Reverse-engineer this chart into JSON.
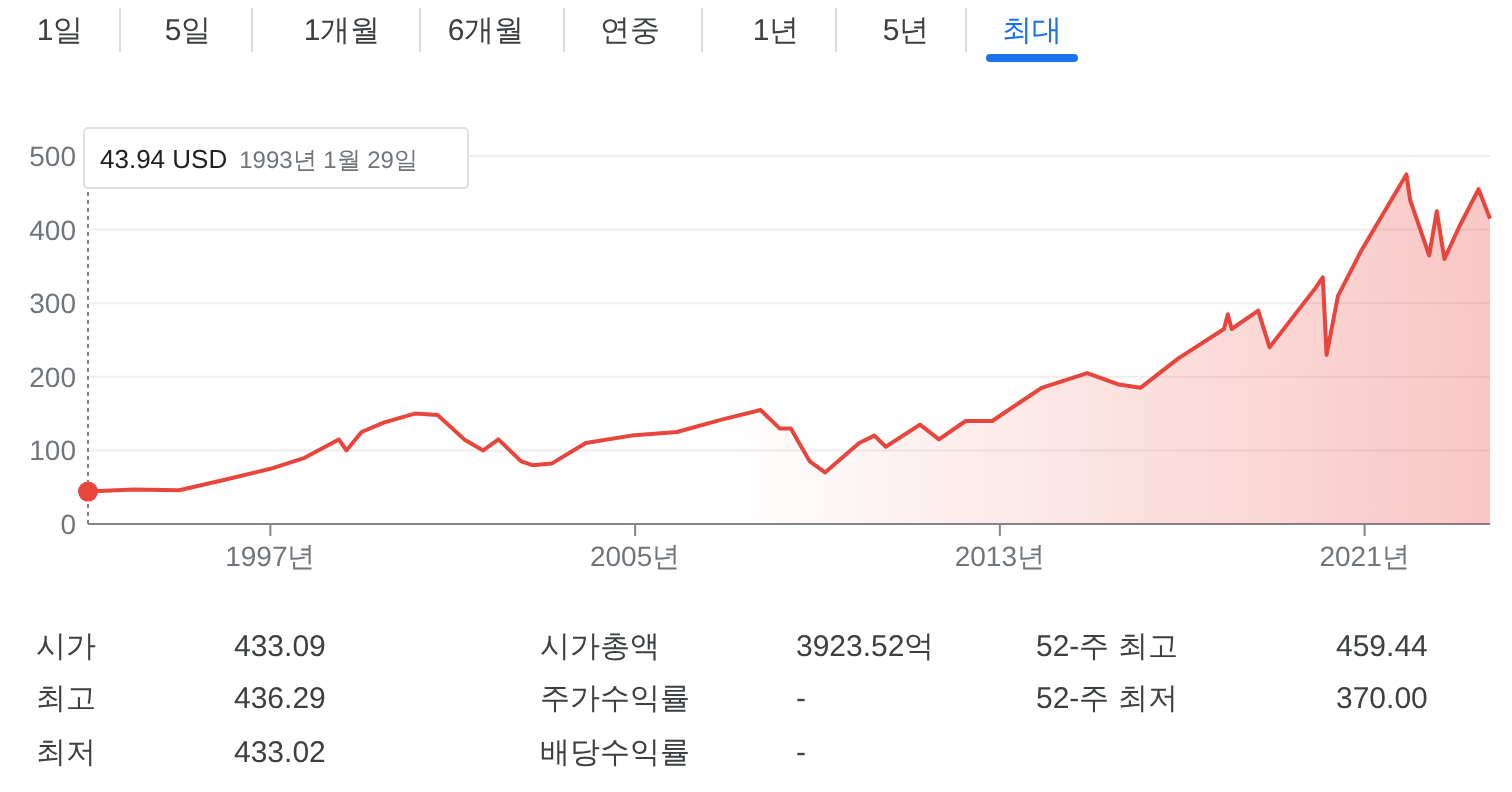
{
  "chart_data": {
    "type": "area",
    "color": "#e8453c",
    "x": [
      "1993-01",
      "1994-01",
      "1995-01",
      "1996-01",
      "1997-01",
      "1997-10",
      "1998-07",
      "1998-09",
      "1999-01",
      "1999-07",
      "2000-03",
      "2000-09",
      "2001-04",
      "2001-09",
      "2002-01",
      "2002-07",
      "2002-10",
      "2003-03",
      "2003-12",
      "2004-12",
      "2005-12",
      "2006-12",
      "2007-10",
      "2008-03",
      "2008-06",
      "2008-11",
      "2009-03",
      "2009-12",
      "2010-04",
      "2010-07",
      "2011-04",
      "2011-09",
      "2012-04",
      "2012-11",
      "2013-12",
      "2014-12",
      "2015-08",
      "2016-02",
      "2016-12",
      "2017-12",
      "2018-01",
      "2018-02",
      "2018-09",
      "2018-12",
      "2019-12",
      "2020-02",
      "2020-03",
      "2020-06",
      "2020-12",
      "2021-12",
      "2022-01",
      "2022-06",
      "2022-08",
      "2022-10",
      "2023-02",
      "2023-07",
      "2023-10"
    ],
    "values": [
      44,
      47,
      46,
      60,
      75,
      90,
      115,
      100,
      125,
      138,
      150,
      148,
      115,
      100,
      115,
      85,
      80,
      82,
      110,
      120,
      125,
      142,
      155,
      130,
      130,
      85,
      70,
      110,
      120,
      105,
      135,
      115,
      140,
      140,
      185,
      205,
      190,
      185,
      225,
      265,
      285,
      265,
      290,
      240,
      320,
      335,
      230,
      310,
      370,
      475,
      440,
      365,
      425,
      360,
      405,
      455,
      415
    ],
    "xlim": [
      "1993-01",
      "2023-10"
    ],
    "xticks": [
      {
        "value": "1997-01",
        "label": "1997년"
      },
      {
        "value": "2005-01",
        "label": "2005년"
      },
      {
        "value": "2013-01",
        "label": "2013년"
      },
      {
        "value": "2021-01",
        "label": "2021년"
      }
    ],
    "ylim": [
      0,
      500
    ],
    "yticks": [
      0,
      100,
      200,
      300,
      400,
      500
    ],
    "grid": "y",
    "annotations": [
      "43.94 USD  1993년 1월 29일",
      "1일",
      "5일",
      "1개월",
      "6개월",
      "연중",
      "1년",
      "5년",
      "최대",
      "시가",
      "433.09",
      "최고",
      "436.29",
      "최저",
      "433.02",
      "시가총액",
      "3923.52억",
      "주가수익률",
      "-",
      "배당수익률",
      "-",
      "52-주 최고",
      "459.44",
      "52-주 최저",
      "370.00"
    ]
  }
}
